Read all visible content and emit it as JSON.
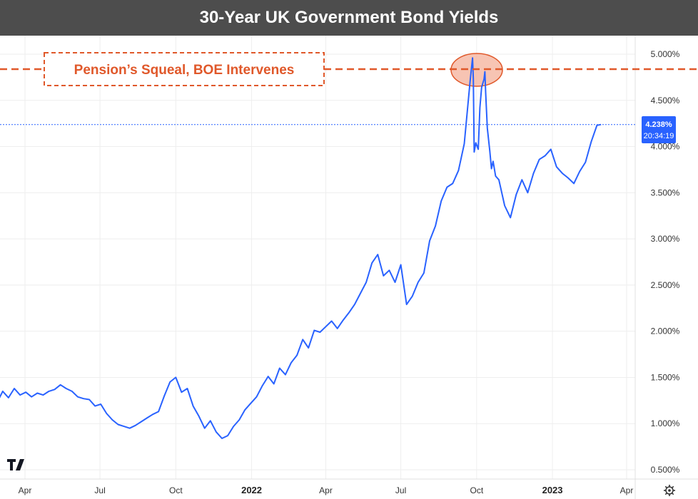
{
  "header": {
    "title": "30-Year UK Government Bond Yields"
  },
  "annotation": {
    "text": "Pension’s Squeal, BOE Intervenes"
  },
  "last_price": {
    "value": "4.238%",
    "time": "20:34:19"
  },
  "colors": {
    "line": "#2962ff",
    "annotation": "#e0582a",
    "highlight_fill": "#f4b09a",
    "title_bar": "#4d4d4d",
    "price_box": "#2962ff"
  },
  "icons": {
    "logo": "tradingview-logo-icon",
    "settings": "gear-icon"
  },
  "chart_data": {
    "type": "line",
    "title": "30-Year UK Government Bond Yields",
    "xlabel": "",
    "ylabel": "",
    "ylim": [
      0.5,
      5.1
    ],
    "grid": true,
    "y_ticks": [
      "0.500%",
      "1.000%",
      "1.500%",
      "2.000%",
      "2.500%",
      "3.000%",
      "3.500%",
      "4.000%",
      "4.500%",
      "5.000%"
    ],
    "x_ticks": [
      {
        "label": "Apr",
        "bold": false,
        "date": "2021-04-01"
      },
      {
        "label": "Jul",
        "bold": false,
        "date": "2021-07-01"
      },
      {
        "label": "Oct",
        "bold": false,
        "date": "2021-10-01"
      },
      {
        "label": "2022",
        "bold": true,
        "date": "2022-01-01"
      },
      {
        "label": "Apr",
        "bold": false,
        "date": "2022-04-01"
      },
      {
        "label": "Jul",
        "bold": false,
        "date": "2022-07-01"
      },
      {
        "label": "Oct",
        "bold": false,
        "date": "2022-10-01"
      },
      {
        "label": "2023",
        "bold": true,
        "date": "2023-01-01"
      },
      {
        "label": "Apr",
        "bold": false,
        "date": "2023-04-01"
      }
    ],
    "series": [
      {
        "x": [
          "2021-02-28",
          "2021-03-05",
          "2021-03-12",
          "2021-03-19",
          "2021-03-26",
          "2021-04-02",
          "2021-04-09",
          "2021-04-16",
          "2021-04-23",
          "2021-04-30",
          "2021-05-07",
          "2021-05-14",
          "2021-05-21",
          "2021-05-28",
          "2021-06-04",
          "2021-06-11",
          "2021-06-18",
          "2021-06-25",
          "2021-07-02",
          "2021-07-09",
          "2021-07-16",
          "2021-07-23",
          "2021-07-30",
          "2021-08-06",
          "2021-08-13",
          "2021-08-20",
          "2021-08-27",
          "2021-09-03",
          "2021-09-10",
          "2021-09-17",
          "2021-09-24",
          "2021-10-01",
          "2021-10-08",
          "2021-10-15",
          "2021-10-22",
          "2021-10-29",
          "2021-11-05",
          "2021-11-12",
          "2021-11-19",
          "2021-11-26",
          "2021-12-03",
          "2021-12-10",
          "2021-12-17",
          "2021-12-24",
          "2021-12-31",
          "2022-01-07",
          "2022-01-14",
          "2022-01-21",
          "2022-01-28",
          "2022-02-04",
          "2022-02-11",
          "2022-02-18",
          "2022-02-25",
          "2022-03-04",
          "2022-03-11",
          "2022-03-18",
          "2022-03-25",
          "2022-04-01",
          "2022-04-08",
          "2022-04-15",
          "2022-04-22",
          "2022-04-29",
          "2022-05-06",
          "2022-05-13",
          "2022-05-20",
          "2022-05-27",
          "2022-06-03",
          "2022-06-10",
          "2022-06-17",
          "2022-06-24",
          "2022-07-01",
          "2022-07-08",
          "2022-07-15",
          "2022-07-22",
          "2022-07-29",
          "2022-08-05",
          "2022-08-12",
          "2022-08-19",
          "2022-08-26",
          "2022-09-02",
          "2022-09-09",
          "2022-09-16",
          "2022-09-23",
          "2022-09-26",
          "2022-09-27",
          "2022-09-28",
          "2022-09-30",
          "2022-10-03",
          "2022-10-05",
          "2022-10-07",
          "2022-10-10",
          "2022-10-11",
          "2022-10-12",
          "2022-10-14",
          "2022-10-17",
          "2022-10-19",
          "2022-10-21",
          "2022-10-24",
          "2022-10-28",
          "2022-11-04",
          "2022-11-11",
          "2022-11-18",
          "2022-11-25",
          "2022-12-02",
          "2022-12-09",
          "2022-12-16",
          "2022-12-23",
          "2022-12-30",
          "2023-01-06",
          "2023-01-13",
          "2023-01-20",
          "2023-01-27",
          "2023-02-03",
          "2023-02-10",
          "2023-02-17",
          "2023-02-24",
          "2023-03-01"
        ],
        "values": [
          1.26,
          1.35,
          1.28,
          1.38,
          1.31,
          1.34,
          1.29,
          1.33,
          1.31,
          1.35,
          1.37,
          1.42,
          1.38,
          1.35,
          1.29,
          1.27,
          1.26,
          1.19,
          1.21,
          1.11,
          1.04,
          0.99,
          0.97,
          0.95,
          0.98,
          1.02,
          1.06,
          1.1,
          1.13,
          1.3,
          1.45,
          1.5,
          1.34,
          1.38,
          1.19,
          1.08,
          0.95,
          1.03,
          0.91,
          0.84,
          0.87,
          0.97,
          1.04,
          1.15,
          1.22,
          1.29,
          1.41,
          1.51,
          1.43,
          1.6,
          1.53,
          1.66,
          1.74,
          1.91,
          1.82,
          2.01,
          1.99,
          2.05,
          2.11,
          2.03,
          2.12,
          2.2,
          2.29,
          2.41,
          2.53,
          2.74,
          2.83,
          2.6,
          2.66,
          2.53,
          2.72,
          2.29,
          2.38,
          2.53,
          2.63,
          2.98,
          3.14,
          3.41,
          3.56,
          3.6,
          3.74,
          4.03,
          4.7,
          4.96,
          4.73,
          3.94,
          4.04,
          3.97,
          4.42,
          4.64,
          4.73,
          4.81,
          4.58,
          4.2,
          3.95,
          3.76,
          3.84,
          3.68,
          3.64,
          3.36,
          3.23,
          3.48,
          3.64,
          3.5,
          3.71,
          3.86,
          3.9,
          3.97,
          3.78,
          3.71,
          3.66,
          3.6,
          3.73,
          3.83,
          4.05,
          4.23,
          4.238
        ]
      }
    ]
  }
}
